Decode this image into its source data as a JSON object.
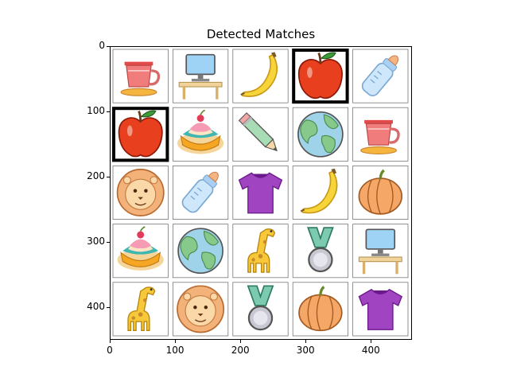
{
  "figure": {
    "title": "Detected Matches"
  },
  "axes": {
    "x_ticks": [
      "0",
      "100",
      "200",
      "300",
      "400"
    ],
    "y_ticks": [
      "0",
      "100",
      "200",
      "300",
      "400"
    ],
    "xlim": [
      0,
      463
    ],
    "ylim_inverted": [
      450,
      0
    ]
  },
  "grid": {
    "rows": 5,
    "cols": 5,
    "cells": [
      [
        "cup",
        "desk",
        "banana",
        "apple",
        "bottle"
      ],
      [
        "apple",
        "cake",
        "pencil",
        "globe",
        "cup"
      ],
      [
        "lion",
        "bottle",
        "shirt",
        "banana",
        "pumpkin"
      ],
      [
        "cake",
        "globe",
        "giraffe",
        "medal",
        "desk"
      ],
      [
        "giraffe",
        "lion",
        "medal",
        "pumpkin",
        "shirt"
      ]
    ],
    "highlighted_cells": [
      [
        0,
        3
      ],
      [
        1,
        0
      ]
    ],
    "highlight_color": "#000000"
  }
}
